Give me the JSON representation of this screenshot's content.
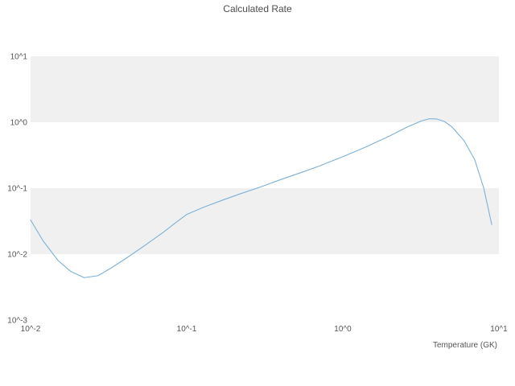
{
  "chart_data": {
    "type": "line",
    "title": "Calculated Rate",
    "xlabel": "Temperature (GK)",
    "ylabel": "",
    "xscale": "log",
    "yscale": "log",
    "xlim": [
      0.01,
      10
    ],
    "ylim": [
      0.001,
      10
    ],
    "x_ticks": [
      0.01,
      0.1,
      1,
      10
    ],
    "x_tick_labels": [
      "10^-2",
      "10^-1",
      "10^0",
      "10^1"
    ],
    "y_ticks": [
      10,
      1,
      0.1,
      0.01,
      0.001
    ],
    "y_tick_labels": [
      "10^1",
      "10^0",
      "10^-1",
      "10^-2",
      "10^-3"
    ],
    "grid": "horizontal-bands",
    "legend": "none",
    "series": [
      {
        "name": "calculated-rate",
        "color": "#7cb1d6",
        "x": [
          0.01,
          0.012,
          0.015,
          0.018,
          0.022,
          0.027,
          0.033,
          0.042,
          0.055,
          0.07,
          0.085,
          0.1,
          0.13,
          0.17,
          0.22,
          0.3,
          0.4,
          0.55,
          0.7,
          1.0,
          1.4,
          2.0,
          2.6,
          3.2,
          3.6,
          4.0,
          4.5,
          5.0,
          6.0,
          7.0,
          8.0,
          9.0
        ],
        "y": [
          0.033,
          0.016,
          0.008,
          0.0055,
          0.0044,
          0.0047,
          0.0062,
          0.009,
          0.014,
          0.021,
          0.03,
          0.04,
          0.052,
          0.066,
          0.082,
          0.105,
          0.135,
          0.175,
          0.215,
          0.3,
          0.42,
          0.62,
          0.85,
          1.05,
          1.13,
          1.12,
          1.02,
          0.85,
          0.52,
          0.27,
          0.1,
          0.028
        ]
      }
    ],
    "colors": {
      "band_gray": "#f0f0f0",
      "band_white": "#ffffff",
      "tick_text": "#555555",
      "title_text": "#4d4d4d",
      "axis_label_text": "#555555"
    },
    "band_colors_top_to_bottom": [
      "#f0f0f0",
      "#ffffff",
      "#f0f0f0",
      "#ffffff"
    ]
  }
}
